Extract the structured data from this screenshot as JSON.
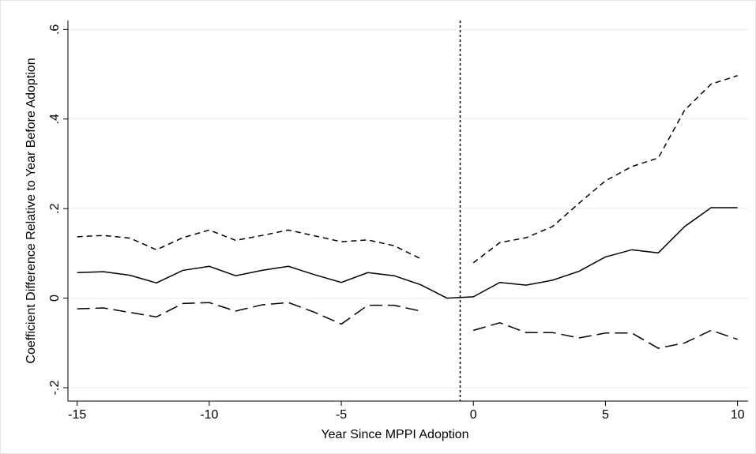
{
  "chart_data": {
    "type": "line",
    "xlabel": "Year Since MPPI Adoption",
    "ylabel": "Coefficient Difference Relative to Year Before Adoption",
    "x": [
      -15,
      -14,
      -13,
      -12,
      -11,
      -10,
      -9,
      -8,
      -7,
      -6,
      -5,
      -4,
      -3,
      -2,
      -1,
      0,
      1,
      2,
      3,
      4,
      5,
      6,
      7,
      8,
      9,
      10
    ],
    "series": [
      {
        "color": "#000000",
        "dash": "solid",
        "values": [
          0.057,
          0.059,
          0.051,
          0.034,
          0.062,
          0.071,
          0.05,
          0.062,
          0.071,
          0.052,
          0.035,
          0.057,
          0.05,
          0.03,
          0,
          0.003,
          0.035,
          0.029,
          0.04,
          0.06,
          0.092,
          0.108,
          0.101,
          0.16,
          0.202,
          0.202
        ]
      },
      {
        "color": "#000000",
        "dash": "short",
        "values": [
          0.137,
          0.14,
          0.134,
          0.108,
          0.135,
          0.152,
          0.129,
          0.14,
          0.152,
          0.139,
          0.126,
          0.13,
          0.117,
          0.088,
          null,
          0.079,
          0.124,
          0.135,
          0.16,
          0.212,
          0.262,
          0.294,
          0.313,
          0.42,
          0.478,
          0.497
        ]
      },
      {
        "color": "#000000",
        "dash": "long",
        "values": [
          -0.024,
          -0.022,
          -0.032,
          -0.042,
          -0.012,
          -0.01,
          -0.029,
          -0.015,
          -0.01,
          -0.032,
          -0.058,
          -0.016,
          -0.016,
          -0.029,
          null,
          -0.072,
          -0.055,
          -0.077,
          -0.077,
          -0.089,
          -0.078,
          -0.078,
          -0.112,
          -0.1,
          -0.072,
          -0.092
        ]
      }
    ],
    "reference_x": -0.5,
    "xlim": [
      -15.35,
      10.4
    ],
    "xticks": [
      -15,
      -10,
      -5,
      0,
      5,
      10
    ],
    "ylim": [
      -0.23,
      0.62
    ],
    "yticks": [
      {
        "value": -0.2,
        "label": "-.2"
      },
      0,
      {
        "value": 0.2,
        "label": ".2"
      },
      {
        "value": 0.4,
        "label": ".4"
      },
      {
        "value": 0.6,
        "label": ".6"
      }
    ],
    "grid": true
  }
}
